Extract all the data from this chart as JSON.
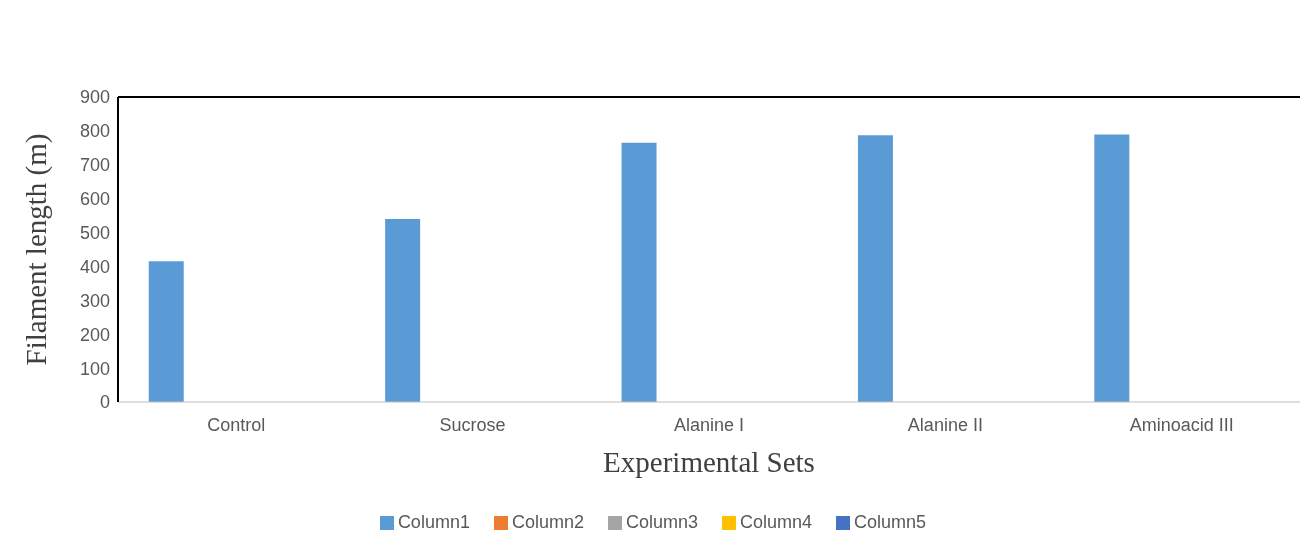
{
  "chart_data": {
    "type": "bar",
    "xlabel": "Experimental Sets",
    "ylabel": "Filament length (m)",
    "categories": [
      "Control",
      "Sucrose",
      "Alanine I",
      "Alanine II",
      "Aminoacid III"
    ],
    "series": [
      {
        "name": "Column1",
        "color": "#5b9bd5",
        "values": [
          415,
          540,
          765,
          787,
          789
        ]
      },
      {
        "name": "Column2",
        "color": "#ed7d31",
        "values": [
          null,
          null,
          null,
          null,
          null
        ]
      },
      {
        "name": "Column3",
        "color": "#a5a5a5",
        "values": [
          null,
          null,
          null,
          null,
          null
        ]
      },
      {
        "name": "Column4",
        "color": "#ffc000",
        "values": [
          null,
          null,
          null,
          null,
          null
        ]
      },
      {
        "name": "Column5",
        "color": "#4472c4",
        "values": [
          null,
          null,
          null,
          null,
          null
        ]
      }
    ],
    "ylim": [
      0,
      900
    ],
    "yticks": [
      0,
      100,
      200,
      300,
      400,
      500,
      600,
      700,
      800,
      900
    ],
    "grid": false,
    "legend": "bottom"
  }
}
